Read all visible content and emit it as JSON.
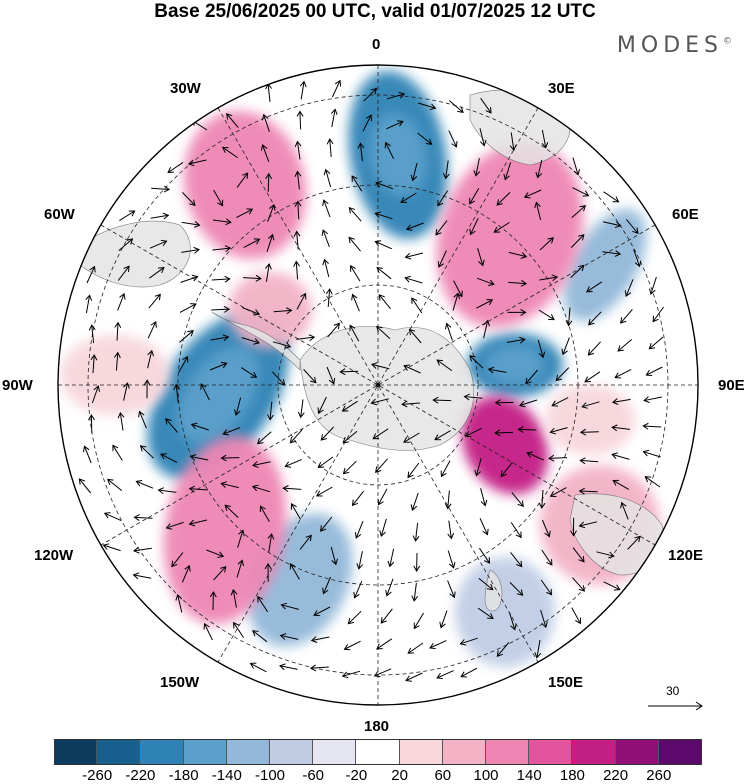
{
  "title": "Base 25/06/2025 00 UTC, valid 01/07/2025 12 UTC",
  "brand": {
    "name": "MODES",
    "mark": "©"
  },
  "longitude_labels": {
    "lon_0": "0",
    "lon_30e": "30E",
    "lon_60e": "60E",
    "lon_90e": "90E",
    "lon_120e": "120E",
    "lon_150e": "150E",
    "lon_180": "180",
    "lon_150w": "150W",
    "lon_120w": "120W",
    "lon_90w": "90W",
    "lon_60w": "60W",
    "lon_30w": "30W"
  },
  "reference_vector": {
    "value": "30"
  },
  "colorbar": {
    "ticks": [
      "-260",
      "-220",
      "-180",
      "-140",
      "-100",
      "-60",
      "-20",
      "20",
      "60",
      "100",
      "140",
      "180",
      "220",
      "260"
    ],
    "colors": [
      "#0c3d5e",
      "#175f8c",
      "#2f82b5",
      "#5ba0cb",
      "#93b8d9",
      "#c0cde5",
      "#e6e6f2",
      "#ffffff",
      "#f7d6dc",
      "#f3b2c6",
      "#ee86b4",
      "#e2549e",
      "#c31f84",
      "#8f0f77",
      "#5b0a6b"
    ]
  },
  "anomalies": [
    {
      "sign": "negative",
      "level": 180
    },
    {
      "sign": "negative",
      "level": 140
    },
    {
      "sign": "negative",
      "level": 180
    },
    {
      "sign": "negative",
      "level": 140
    },
    {
      "sign": "negative",
      "level": 180
    },
    {
      "sign": "negative",
      "level": 140
    },
    {
      "sign": "negative",
      "level": 100
    },
    {
      "sign": "negative",
      "level": 100
    },
    {
      "sign": "negative",
      "level": 60
    },
    {
      "sign": "positive",
      "level": 140
    },
    {
      "sign": "positive",
      "level": 140
    },
    {
      "sign": "positive",
      "level": 140
    },
    {
      "sign": "positive",
      "level": 100
    },
    {
      "sign": "positive",
      "level": 220
    },
    {
      "sign": "positive",
      "level": 100
    },
    {
      "sign": "positive",
      "level": 60
    },
    {
      "sign": "positive",
      "level": 60
    }
  ]
}
